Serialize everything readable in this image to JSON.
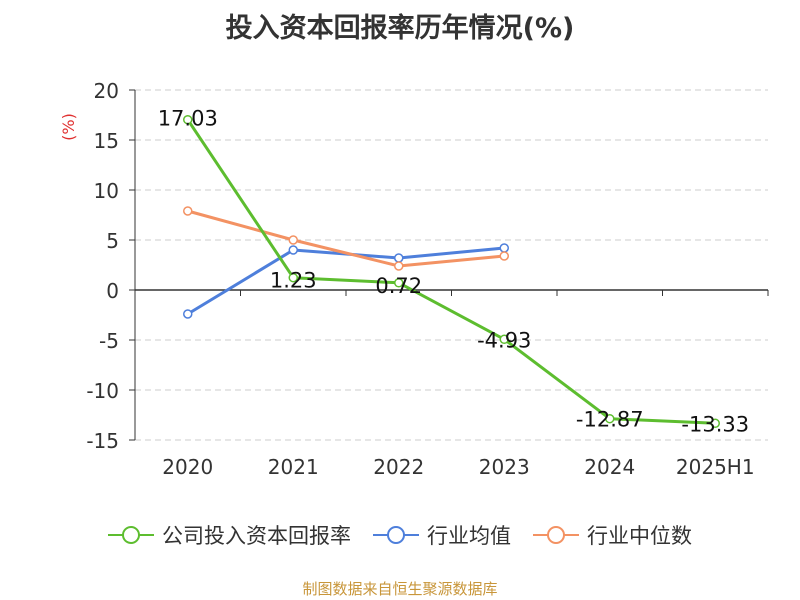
{
  "title": "投入资本回报率历年情况(%)",
  "source": "制图数据来自恒生聚源数据库",
  "legend": [
    {
      "label": "公司投入资本回报率",
      "color": "#5dbd2f"
    },
    {
      "label": "行业均值",
      "color": "#4e7fdb"
    },
    {
      "label": "行业中位数",
      "color": "#f39263"
    }
  ],
  "chart_data": {
    "type": "line",
    "categories": [
      "2020",
      "2021",
      "2022",
      "2023",
      "2024",
      "2025H1"
    ],
    "ylabel": "(%)",
    "ylim": [
      -15,
      20
    ],
    "yticks": [
      20,
      15,
      10,
      5,
      0,
      -5,
      -10,
      -15
    ],
    "grid": true,
    "legend_position": "bottom",
    "series": [
      {
        "name": "公司投入资本回报率",
        "color": "#5dbd2f",
        "values": [
          17.03,
          1.23,
          0.72,
          -4.93,
          -12.87,
          -13.33
        ],
        "labels": [
          "17.03",
          "1.23",
          "0.72",
          "-4.93",
          "-12.87",
          "-13.33"
        ]
      },
      {
        "name": "行业均值",
        "color": "#4e7fdb",
        "values": [
          -2.4,
          4.0,
          3.2,
          4.2,
          null,
          null
        ]
      },
      {
        "name": "行业中位数",
        "color": "#f39263",
        "values": [
          7.9,
          5.0,
          2.4,
          3.4,
          null,
          null
        ]
      }
    ]
  }
}
